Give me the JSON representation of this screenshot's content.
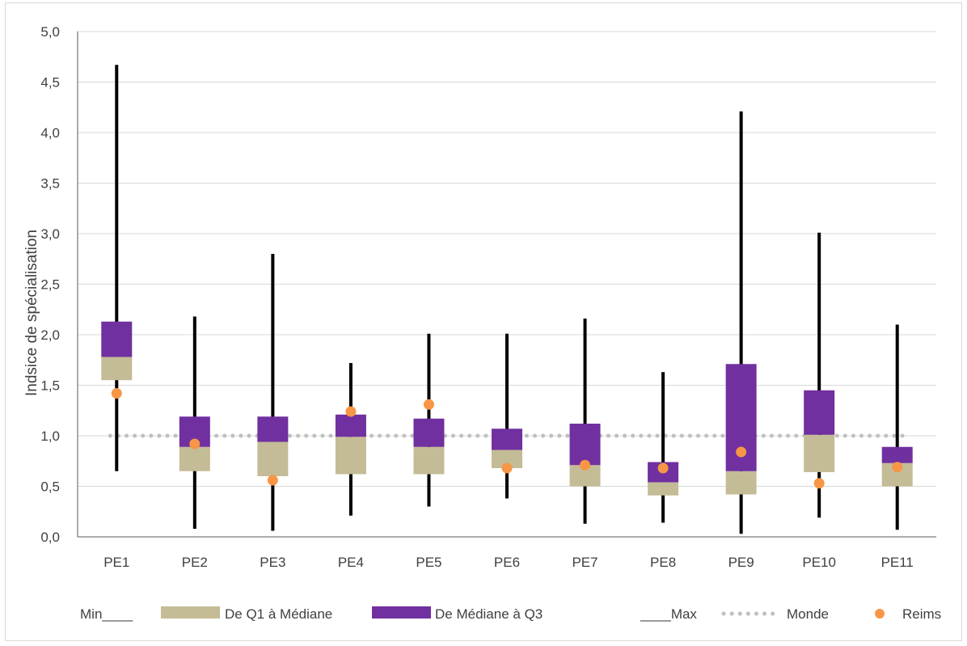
{
  "chart_data": {
    "type": "boxplot",
    "title": "",
    "xlabel": "",
    "ylabel": "Indsice de spécialisation",
    "ylim": [
      0,
      5
    ],
    "yticks": [
      "0,0",
      "0,5",
      "1,0",
      "1,5",
      "2,0",
      "2,5",
      "3,0",
      "3,5",
      "4,0",
      "4,5",
      "5,0"
    ],
    "grid": "horizontal",
    "legend_position": "bottom",
    "categories": [
      "PE1",
      "PE2",
      "PE3",
      "PE4",
      "PE5",
      "PE6",
      "PE7",
      "PE8",
      "PE9",
      "PE10",
      "PE11"
    ],
    "min": [
      0.65,
      0.08,
      0.06,
      0.21,
      0.3,
      0.38,
      0.13,
      0.14,
      0.03,
      0.19,
      0.07
    ],
    "q1": [
      1.55,
      0.65,
      0.6,
      0.62,
      0.62,
      0.68,
      0.5,
      0.41,
      0.42,
      0.64,
      0.5
    ],
    "median": [
      1.78,
      0.89,
      0.94,
      0.99,
      0.89,
      0.86,
      0.71,
      0.54,
      0.65,
      1.01,
      0.73
    ],
    "q3": [
      2.13,
      1.19,
      1.19,
      1.21,
      1.17,
      1.07,
      1.12,
      0.74,
      1.71,
      1.45,
      0.89
    ],
    "max": [
      4.67,
      2.18,
      2.8,
      1.72,
      2.01,
      2.01,
      2.16,
      1.63,
      4.21,
      3.01,
      2.1
    ],
    "reims": [
      1.42,
      0.92,
      0.56,
      1.24,
      1.31,
      0.68,
      0.71,
      0.68,
      0.84,
      0.53,
      0.69
    ],
    "monde": 1.0,
    "colors": {
      "q1_median": "#c4bc96",
      "median_q3": "#7030a0",
      "whisker": "#000000",
      "monde": "#bfbfbf",
      "reims": "#f79646",
      "grid": "#d9d9d9"
    },
    "legend": {
      "min": "Min____",
      "q1_median": "De Q1 à Médiane",
      "median_q3": "De Médiane à Q3",
      "max": "____Max",
      "monde": "Monde",
      "reims": "Reims"
    }
  }
}
